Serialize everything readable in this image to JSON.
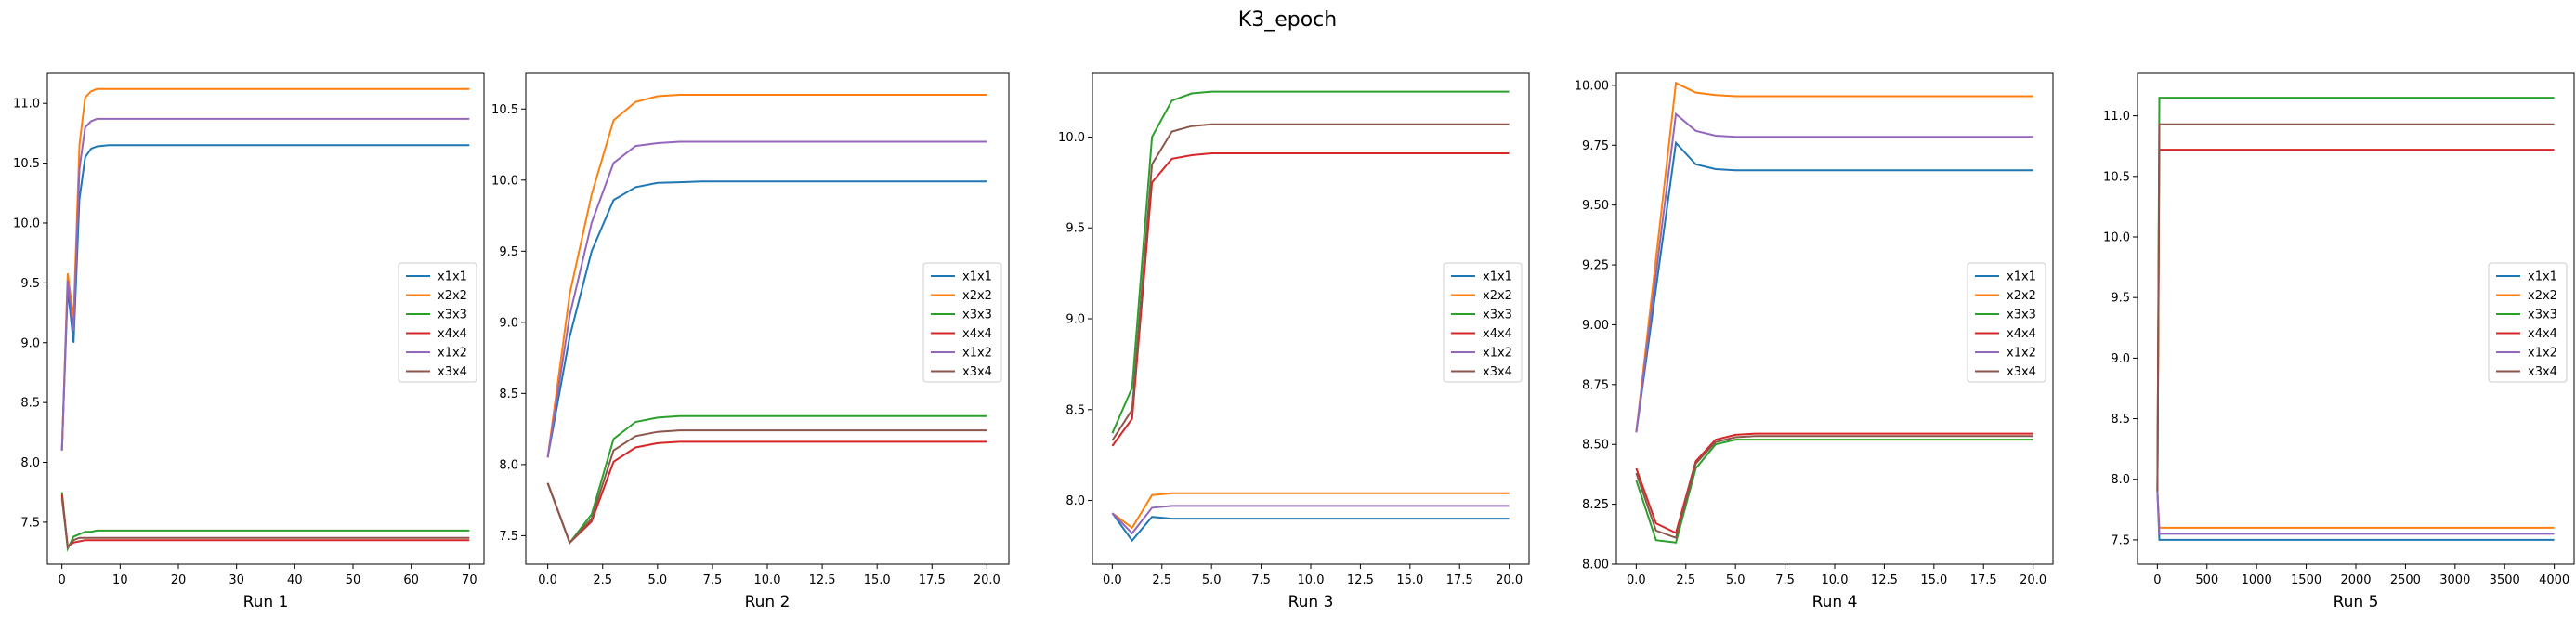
{
  "figure_title": "K3_epoch",
  "colors": {
    "x1x1": "#1f77b4",
    "x2x2": "#ff7f0e",
    "x3x3": "#2ca02c",
    "x4x4": "#d62728",
    "x1x2": "#9467bd",
    "x3x4": "#8c564b"
  },
  "chart_data": [
    {
      "type": "line",
      "xlabel": "Run 1",
      "xlim": [
        -2.5,
        72.5
      ],
      "ylim": [
        7.15,
        11.25
      ],
      "xticks": [
        0,
        10,
        20,
        30,
        40,
        50,
        60,
        70
      ],
      "xtick_labels": [
        "0",
        "10",
        "20",
        "30",
        "40",
        "50",
        "60",
        "70"
      ],
      "yticks": [
        7.5,
        8.0,
        8.5,
        9.0,
        9.5,
        10.0,
        10.5,
        11.0
      ],
      "ytick_labels": [
        "7.5",
        "8.0",
        "8.5",
        "9.0",
        "9.5",
        "10.0",
        "10.5",
        "11.0"
      ],
      "legend_position": "center-right",
      "series": [
        {
          "name": "x1x1",
          "x": [
            0,
            1,
            2,
            3,
            4,
            5,
            6,
            8,
            10,
            70
          ],
          "y": [
            8.1,
            9.45,
            9.0,
            10.2,
            10.55,
            10.62,
            10.64,
            10.65,
            10.65,
            10.65
          ]
        },
        {
          "name": "x2x2",
          "x": [
            0,
            1,
            2,
            3,
            4,
            5,
            6,
            8,
            10,
            70
          ],
          "y": [
            8.1,
            9.58,
            9.2,
            10.65,
            11.05,
            11.1,
            11.12,
            11.12,
            11.12,
            11.12
          ]
        },
        {
          "name": "x3x3",
          "x": [
            0,
            1,
            2,
            3,
            4,
            5,
            6,
            8,
            10,
            70
          ],
          "y": [
            7.75,
            7.28,
            7.38,
            7.4,
            7.42,
            7.42,
            7.43,
            7.43,
            7.43,
            7.43
          ]
        },
        {
          "name": "x4x4",
          "x": [
            0,
            1,
            2,
            3,
            4,
            5,
            6,
            8,
            10,
            70
          ],
          "y": [
            7.73,
            7.3,
            7.33,
            7.34,
            7.35,
            7.35,
            7.35,
            7.35,
            7.35,
            7.35
          ]
        },
        {
          "name": "x1x2",
          "x": [
            0,
            1,
            2,
            3,
            4,
            5,
            6,
            8,
            10,
            70
          ],
          "y": [
            8.1,
            9.52,
            9.1,
            10.45,
            10.8,
            10.85,
            10.87,
            10.87,
            10.87,
            10.87
          ]
        },
        {
          "name": "x3x4",
          "x": [
            0,
            1,
            2,
            3,
            4,
            5,
            6,
            8,
            10,
            70
          ],
          "y": [
            7.7,
            7.29,
            7.35,
            7.37,
            7.37,
            7.37,
            7.37,
            7.37,
            7.37,
            7.37
          ]
        }
      ]
    },
    {
      "type": "line",
      "xlabel": "Run 2",
      "xlim": [
        -1.0,
        21.0
      ],
      "ylim": [
        7.3,
        10.75
      ],
      "xticks": [
        0,
        2.5,
        5,
        7.5,
        10,
        12.5,
        15,
        17.5,
        20
      ],
      "xtick_labels": [
        "0.0",
        "2.5",
        "5.0",
        "7.5",
        "10.0",
        "12.5",
        "15.0",
        "17.5",
        "20.0"
      ],
      "yticks": [
        7.5,
        8.0,
        8.5,
        9.0,
        9.5,
        10.0,
        10.5
      ],
      "ytick_labels": [
        "7.5",
        "8.0",
        "8.5",
        "9.0",
        "9.5",
        "10.0",
        "10.5"
      ],
      "legend_position": "center-right",
      "series": [
        {
          "name": "x1x1",
          "x": [
            0,
            1,
            2,
            3,
            4,
            5,
            6,
            7,
            8,
            20
          ],
          "y": [
            8.05,
            8.9,
            9.5,
            9.86,
            9.95,
            9.98,
            9.985,
            9.99,
            9.99,
            9.99
          ]
        },
        {
          "name": "x2x2",
          "x": [
            0,
            1,
            2,
            3,
            4,
            5,
            6,
            7,
            8,
            20
          ],
          "y": [
            8.05,
            9.2,
            9.9,
            10.42,
            10.55,
            10.59,
            10.6,
            10.6,
            10.6,
            10.6
          ]
        },
        {
          "name": "x3x3",
          "x": [
            0,
            1,
            2,
            3,
            4,
            5,
            6,
            7,
            8,
            20
          ],
          "y": [
            7.87,
            7.45,
            7.65,
            8.18,
            8.3,
            8.33,
            8.34,
            8.34,
            8.34,
            8.34
          ]
        },
        {
          "name": "x4x4",
          "x": [
            0,
            1,
            2,
            3,
            4,
            5,
            6,
            7,
            8,
            20
          ],
          "y": [
            7.87,
            7.45,
            7.6,
            8.02,
            8.12,
            8.15,
            8.16,
            8.16,
            8.16,
            8.16
          ]
        },
        {
          "name": "x1x2",
          "x": [
            0,
            1,
            2,
            3,
            4,
            5,
            6,
            7,
            8,
            20
          ],
          "y": [
            8.05,
            9.05,
            9.7,
            10.12,
            10.24,
            10.26,
            10.27,
            10.27,
            10.27,
            10.27
          ]
        },
        {
          "name": "x3x4",
          "x": [
            0,
            1,
            2,
            3,
            4,
            5,
            6,
            7,
            8,
            20
          ],
          "y": [
            7.87,
            7.45,
            7.62,
            8.1,
            8.2,
            8.23,
            8.24,
            8.24,
            8.24,
            8.24
          ]
        }
      ]
    },
    {
      "type": "line",
      "xlabel": "Run 3",
      "xlim": [
        -1.0,
        21.0
      ],
      "ylim": [
        7.65,
        10.35
      ],
      "xticks": [
        0,
        2.5,
        5,
        7.5,
        10,
        12.5,
        15,
        17.5,
        20
      ],
      "xtick_labels": [
        "0.0",
        "2.5",
        "5.0",
        "7.5",
        "10.0",
        "12.5",
        "15.0",
        "17.5",
        "20.0"
      ],
      "yticks": [
        8.0,
        8.5,
        9.0,
        9.5,
        10.0
      ],
      "ytick_labels": [
        "8.0",
        "8.5",
        "9.0",
        "9.5",
        "10.0"
      ],
      "legend_position": "center-right",
      "series": [
        {
          "name": "x1x1",
          "x": [
            0,
            1,
            2,
            3,
            4,
            5,
            6,
            8,
            20
          ],
          "y": [
            7.93,
            7.78,
            7.91,
            7.9,
            7.9,
            7.9,
            7.9,
            7.9,
            7.9
          ]
        },
        {
          "name": "x2x2",
          "x": [
            0,
            1,
            2,
            3,
            4,
            5,
            6,
            8,
            20
          ],
          "y": [
            7.93,
            7.85,
            8.03,
            8.04,
            8.04,
            8.04,
            8.04,
            8.04,
            8.04
          ]
        },
        {
          "name": "x3x3",
          "x": [
            0,
            1,
            2,
            3,
            4,
            5,
            6,
            8,
            20
          ],
          "y": [
            8.37,
            8.62,
            10.0,
            10.2,
            10.24,
            10.25,
            10.25,
            10.25,
            10.25
          ]
        },
        {
          "name": "x4x4",
          "x": [
            0,
            1,
            2,
            3,
            4,
            5,
            6,
            8,
            20
          ],
          "y": [
            8.3,
            8.45,
            9.75,
            9.88,
            9.9,
            9.91,
            9.91,
            9.91,
            9.91
          ]
        },
        {
          "name": "x1x2",
          "x": [
            0,
            1,
            2,
            3,
            4,
            5,
            6,
            8,
            20
          ],
          "y": [
            7.93,
            7.82,
            7.96,
            7.97,
            7.97,
            7.97,
            7.97,
            7.97,
            7.97
          ]
        },
        {
          "name": "x3x4",
          "x": [
            0,
            1,
            2,
            3,
            4,
            5,
            6,
            8,
            20
          ],
          "y": [
            8.33,
            8.5,
            9.85,
            10.03,
            10.06,
            10.07,
            10.07,
            10.07,
            10.07
          ]
        }
      ]
    },
    {
      "type": "line",
      "xlabel": "Run 4",
      "xlim": [
        -1.0,
        21.0
      ],
      "ylim": [
        8.0,
        10.05
      ],
      "xticks": [
        0,
        2.5,
        5,
        7.5,
        10,
        12.5,
        15,
        17.5,
        20
      ],
      "xtick_labels": [
        "0.0",
        "2.5",
        "5.0",
        "7.5",
        "10.0",
        "12.5",
        "15.0",
        "17.5",
        "20.0"
      ],
      "yticks": [
        8.0,
        8.25,
        8.5,
        8.75,
        9.0,
        9.25,
        9.5,
        9.75,
        10.0
      ],
      "ytick_labels": [
        "8.00",
        "8.25",
        "8.50",
        "8.75",
        "9.00",
        "9.25",
        "9.50",
        "9.75",
        "10.00"
      ],
      "legend_position": "center-right",
      "series": [
        {
          "name": "x1x1",
          "x": [
            0,
            2,
            3,
            4,
            5,
            6,
            8,
            20
          ],
          "y": [
            8.55,
            9.76,
            9.67,
            9.65,
            9.645,
            9.645,
            9.645,
            9.645
          ]
        },
        {
          "name": "x2x2",
          "x": [
            0,
            2,
            3,
            4,
            5,
            6,
            8,
            20
          ],
          "y": [
            8.55,
            10.01,
            9.97,
            9.96,
            9.955,
            9.955,
            9.955,
            9.955
          ]
        },
        {
          "name": "x3x3",
          "x": [
            0,
            1,
            2,
            3,
            4,
            5,
            6,
            8,
            20
          ],
          "y": [
            8.35,
            8.1,
            8.09,
            8.4,
            8.5,
            8.52,
            8.52,
            8.52,
            8.52
          ]
        },
        {
          "name": "x4x4",
          "x": [
            0,
            1,
            2,
            3,
            4,
            5,
            6,
            8,
            20
          ],
          "y": [
            8.4,
            8.17,
            8.13,
            8.43,
            8.52,
            8.54,
            8.545,
            8.545,
            8.545
          ]
        },
        {
          "name": "x1x2",
          "x": [
            0,
            2,
            3,
            4,
            5,
            6,
            8,
            20
          ],
          "y": [
            8.55,
            9.88,
            9.81,
            9.79,
            9.785,
            9.785,
            9.785,
            9.785
          ]
        },
        {
          "name": "x3x4",
          "x": [
            0,
            1,
            2,
            3,
            4,
            5,
            6,
            8,
            20
          ],
          "y": [
            8.38,
            8.14,
            8.11,
            8.42,
            8.51,
            8.53,
            8.535,
            8.535,
            8.535
          ]
        }
      ]
    },
    {
      "type": "line",
      "xlabel": "Run 5",
      "xlim": [
        -200,
        4200
      ],
      "ylim": [
        7.3,
        11.35
      ],
      "xticks": [
        0,
        500,
        1000,
        1500,
        2000,
        2500,
        3000,
        3500,
        4000
      ],
      "xtick_labels": [
        "0",
        "500",
        "1000",
        "1500",
        "2000",
        "2500",
        "3000",
        "3500",
        "4000"
      ],
      "yticks": [
        7.5,
        8.0,
        8.5,
        9.0,
        9.5,
        10.0,
        10.5,
        11.0
      ],
      "ytick_labels": [
        "7.5",
        "8.0",
        "8.5",
        "9.0",
        "9.5",
        "10.0",
        "10.5",
        "11.0"
      ],
      "legend_position": "center-right",
      "series": [
        {
          "name": "x1x1",
          "x": [
            0,
            20,
            4000
          ],
          "y": [
            7.9,
            7.5,
            7.5
          ]
        },
        {
          "name": "x2x2",
          "x": [
            0,
            20,
            4000
          ],
          "y": [
            7.9,
            7.6,
            7.6
          ]
        },
        {
          "name": "x3x3",
          "x": [
            0,
            20,
            4000
          ],
          "y": [
            7.9,
            11.15,
            11.15
          ]
        },
        {
          "name": "x4x4",
          "x": [
            0,
            20,
            4000
          ],
          "y": [
            7.9,
            10.72,
            10.72
          ]
        },
        {
          "name": "x1x2",
          "x": [
            0,
            20,
            4000
          ],
          "y": [
            7.9,
            7.55,
            7.55
          ]
        },
        {
          "name": "x3x4",
          "x": [
            0,
            20,
            4000
          ],
          "y": [
            7.9,
            10.93,
            10.93
          ]
        }
      ]
    }
  ]
}
